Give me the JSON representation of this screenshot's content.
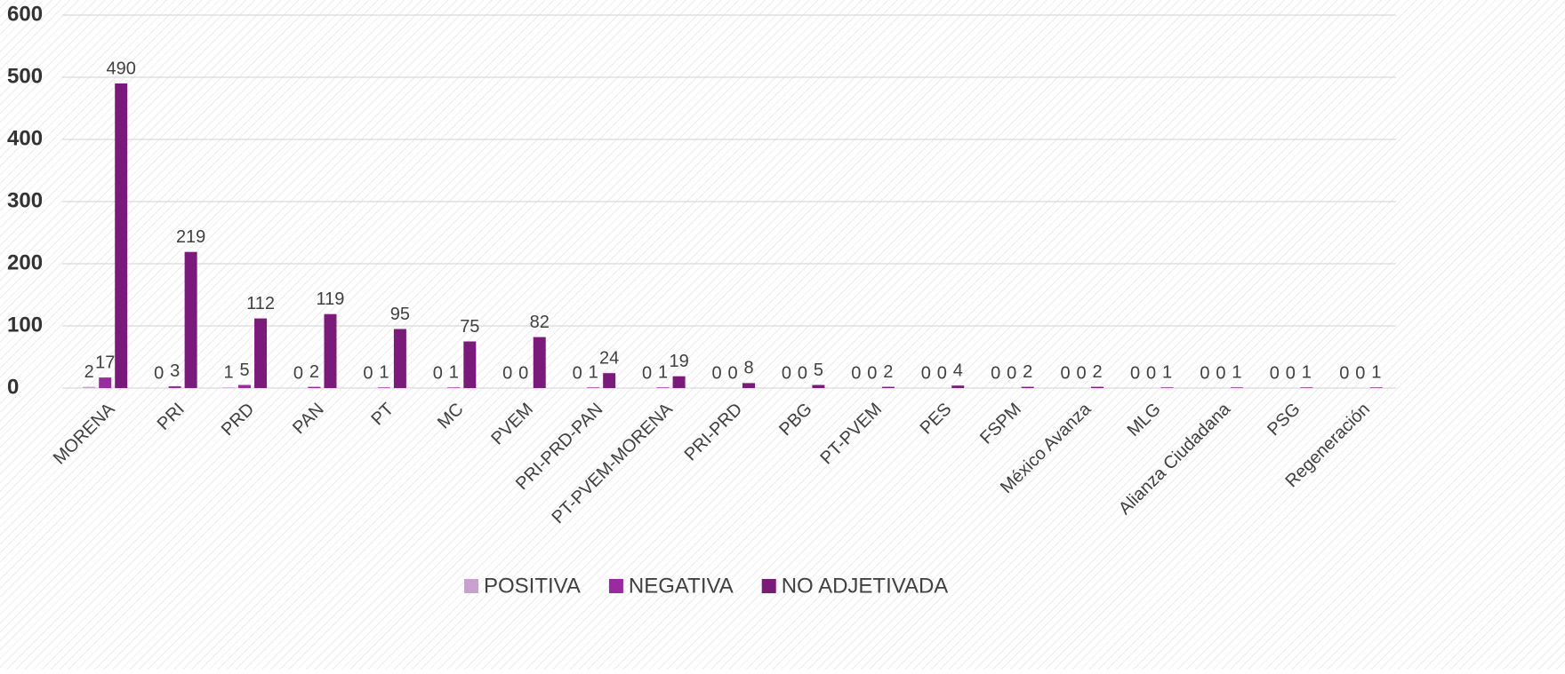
{
  "chart_data": {
    "type": "bar",
    "categories": [
      "MORENA",
      "PRI",
      "PRD",
      "PAN",
      "PT",
      "MC",
      "PVEM",
      "PRI-PRD-PAN",
      "PT-PVEM-MORENA",
      "PRI-PRD",
      "PBG",
      "PT-PVEM",
      "PES",
      "FSPM",
      "México Avanza",
      "MLG",
      "Alianza Ciudadana",
      "PSG",
      "Regeneración"
    ],
    "series": [
      {
        "name": "POSITIVA",
        "color": "#c9a0d0",
        "values": [
          2,
          0,
          1,
          0,
          0,
          0,
          0,
          0,
          0,
          0,
          0,
          0,
          0,
          0,
          0,
          0,
          0,
          0,
          0
        ]
      },
      {
        "name": "NEGATIVA",
        "color": "#9b2aa0",
        "values": [
          17,
          3,
          5,
          2,
          1,
          1,
          0,
          1,
          1,
          0,
          0,
          0,
          0,
          0,
          0,
          0,
          0,
          0,
          0
        ]
      },
      {
        "name": "NO ADJETIVADA",
        "color": "#7b1a7a",
        "values": [
          490,
          219,
          112,
          119,
          95,
          75,
          82,
          24,
          19,
          8,
          5,
          2,
          4,
          2,
          2,
          1,
          1,
          1,
          1
        ]
      }
    ],
    "ylim": [
      0,
      600
    ],
    "yticks": [
      0,
      100,
      200,
      300,
      400,
      500,
      600
    ],
    "grid": true,
    "legend": "bottom"
  }
}
